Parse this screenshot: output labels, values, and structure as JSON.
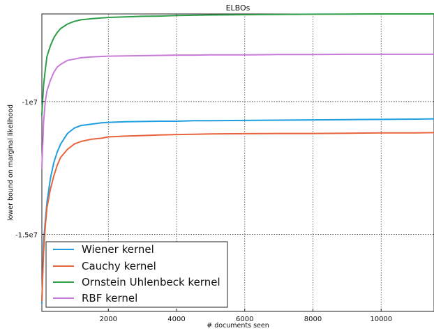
{
  "chart_data": {
    "type": "line",
    "title": "ELBOs",
    "xlabel": "# documents seen",
    "ylabel": "lower bound on marginal likelihood",
    "xlim": [
      50,
      11550
    ],
    "ylim": [
      -17900000,
      -6700000
    ],
    "xticks": [
      2000,
      4000,
      6000,
      8000,
      10000
    ],
    "xtick_labels": [
      "2000",
      "4000",
      "6000",
      "8000",
      "10000"
    ],
    "yticks": [
      -10000000,
      -15000000
    ],
    "ytick_labels": [
      "-1e7",
      "-1.5e7"
    ],
    "grid": true,
    "legend_position": "lower-left",
    "series": [
      {
        "name": "Wiener kernel",
        "color": "#1f9ee0",
        "x": [
          50,
          100,
          150,
          200,
          300,
          400,
          500,
          600,
          800,
          1000,
          1200,
          1500,
          1800,
          2000,
          2500,
          3000,
          3500,
          4000,
          4500,
          5000,
          6000,
          7000,
          8000,
          9000,
          10000,
          11000,
          11550
        ],
        "values": [
          -17600000,
          -15300000,
          -14500000,
          -13800000,
          -12900000,
          -12300000,
          -11900000,
          -11600000,
          -11200000,
          -11000000,
          -10900000,
          -10850000,
          -10800000,
          -10780000,
          -10760000,
          -10750000,
          -10740000,
          -10740000,
          -10720000,
          -10720000,
          -10710000,
          -10700000,
          -10690000,
          -10680000,
          -10670000,
          -10660000,
          -10650000
        ]
      },
      {
        "name": "Cauchy kernel",
        "color": "#e8643c",
        "x": [
          50,
          100,
          150,
          200,
          300,
          400,
          500,
          600,
          800,
          1000,
          1200,
          1500,
          1800,
          2000,
          2500,
          3000,
          3500,
          4000,
          4500,
          5000,
          6000,
          7000,
          8000,
          9000,
          10000,
          11000,
          11550
        ],
        "values": [
          -17500000,
          -15700000,
          -14700000,
          -14000000,
          -13300000,
          -12800000,
          -12400000,
          -12100000,
          -11800000,
          -11600000,
          -11500000,
          -11420000,
          -11380000,
          -11330000,
          -11300000,
          -11280000,
          -11260000,
          -11240000,
          -11230000,
          -11220000,
          -11210000,
          -11200000,
          -11200000,
          -11190000,
          -11180000,
          -11180000,
          -11170000
        ]
      },
      {
        "name": "Ornstein Uhlenbeck kernel",
        "color": "#2e9e48",
        "x": [
          50,
          100,
          150,
          200,
          300,
          400,
          500,
          600,
          800,
          1000,
          1200,
          1500,
          1800,
          2000,
          2500,
          3000,
          3500,
          4000,
          4500,
          5000,
          6000,
          7000,
          8000,
          9000,
          10000,
          11000,
          11550
        ],
        "values": [
          -10500000,
          -9400000,
          -8800000,
          -8300000,
          -7900000,
          -7600000,
          -7400000,
          -7250000,
          -7080000,
          -6980000,
          -6920000,
          -6880000,
          -6850000,
          -6830000,
          -6810000,
          -6790000,
          -6780000,
          -6760000,
          -6750000,
          -6740000,
          -6730000,
          -6720000,
          -6710000,
          -6705000,
          -6700000,
          -6700000,
          -6700000
        ]
      },
      {
        "name": "RBF kernel",
        "color": "#c87bd8",
        "x": [
          50,
          100,
          150,
          200,
          300,
          400,
          500,
          600,
          800,
          1000,
          1200,
          1500,
          1800,
          2000,
          2500,
          3000,
          3500,
          4000,
          4500,
          5000,
          6000,
          7000,
          8000,
          9000,
          10000,
          11000,
          11550
        ],
        "values": [
          -12500000,
          -10800000,
          -10000000,
          -9600000,
          -9200000,
          -8900000,
          -8700000,
          -8600000,
          -8450000,
          -8400000,
          -8350000,
          -8320000,
          -8300000,
          -8290000,
          -8280000,
          -8270000,
          -8260000,
          -8250000,
          -8250000,
          -8240000,
          -8240000,
          -8230000,
          -8230000,
          -8220000,
          -8220000,
          -8220000,
          -8220000
        ]
      }
    ]
  }
}
